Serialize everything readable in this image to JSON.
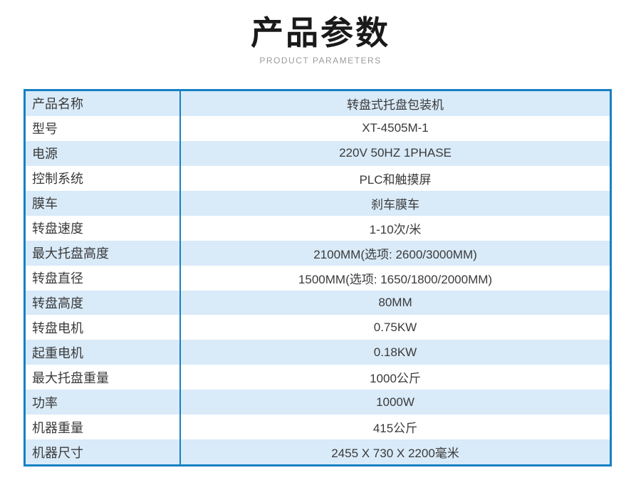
{
  "header": {
    "title": "产品参数",
    "subtitle": "PRODUCT PARAMETERS"
  },
  "colors": {
    "table_border": "#1780c4",
    "row_alt_background": "#d9eaf8",
    "title_text": "#1a1a1a",
    "subtitle_text": "#9b9b9b",
    "body_text": "#3a3a3a"
  },
  "table": {
    "rows": [
      {
        "label": "产品名称",
        "value": "转盘式托盘包装机"
      },
      {
        "label": "型号",
        "value": "XT-4505M-1"
      },
      {
        "label": "电源",
        "value": "220V 50HZ 1PHASE"
      },
      {
        "label": "控制系统",
        "value": "PLC和触摸屏"
      },
      {
        "label": "膜车",
        "value": "刹车膜车"
      },
      {
        "label": "转盘速度",
        "value": "1-10次/米"
      },
      {
        "label": "最大托盘高度",
        "value": "2100MM(选项: 2600/3000MM)"
      },
      {
        "label": "转盘直径",
        "value": "1500MM(选项: 1650/1800/2000MM)"
      },
      {
        "label": "转盘高度",
        "value": "80MM"
      },
      {
        "label": "转盘电机",
        "value": "0.75KW"
      },
      {
        "label": "起重电机",
        "value": "0.18KW"
      },
      {
        "label": "最大托盘重量",
        "value": "1000公斤"
      },
      {
        "label": "功率",
        "value": "1000W"
      },
      {
        "label": "机器重量",
        "value": "415公斤"
      },
      {
        "label": "机器尺寸",
        "value": "2455 X 730 X 2200毫米"
      }
    ]
  }
}
